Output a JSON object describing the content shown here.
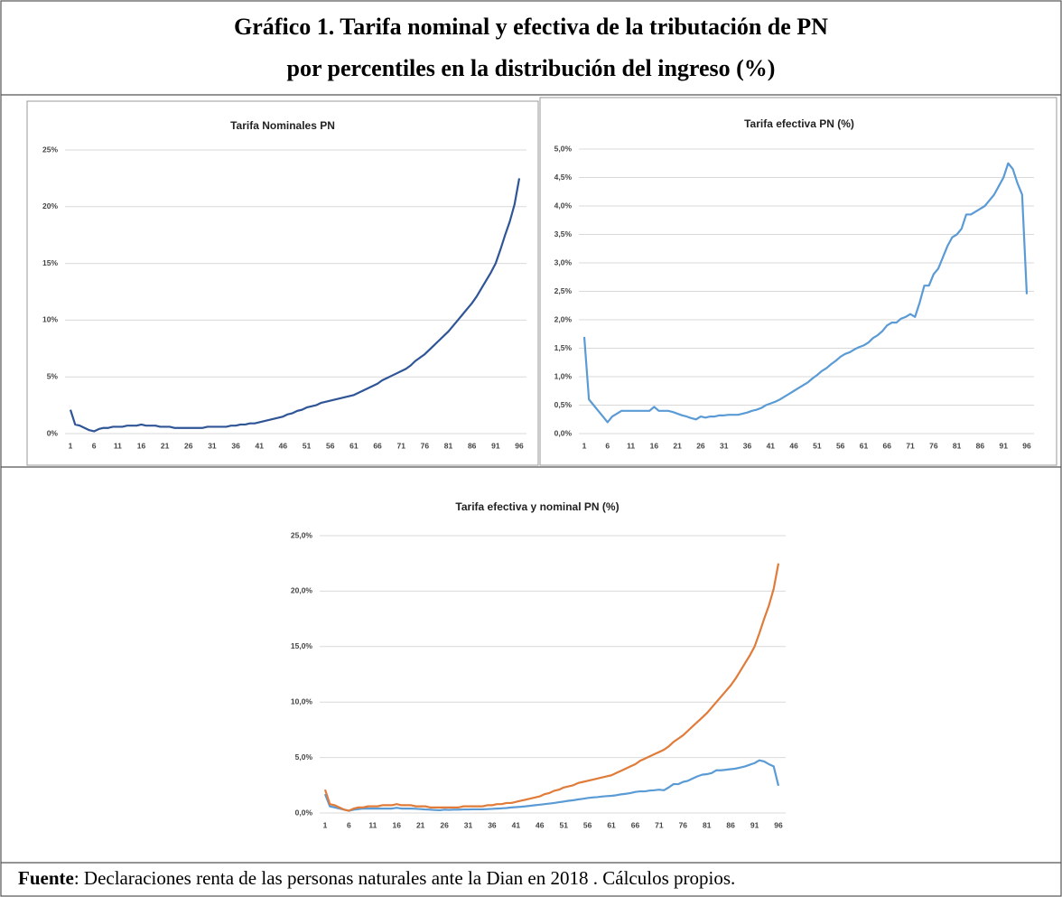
{
  "title": [
    "Gráfico 1. Tarifa nominal y efectiva de la tributación de PN",
    "por percentiles en la distribución del ingreso (%)"
  ],
  "source": {
    "label": "Fuente",
    "text": ": Declaraciones renta de las personas naturales ante la Dian en 2018 . Cálculos propios."
  },
  "chart_data": [
    {
      "type": "line",
      "title": "Tarifa Nominales PN",
      "categories": [
        1,
        null,
        null,
        null,
        null,
        6,
        null,
        null,
        null,
        null,
        11,
        null,
        null,
        null,
        null,
        16,
        null,
        null,
        null,
        null,
        21,
        null,
        null,
        null,
        null,
        26,
        null,
        null,
        null,
        null,
        31,
        null,
        null,
        null,
        null,
        36,
        null,
        null,
        null,
        null,
        41,
        null,
        null,
        null,
        null,
        46,
        null,
        null,
        null,
        null,
        51,
        null,
        null,
        null,
        null,
        56,
        null,
        null,
        null,
        null,
        61,
        null,
        null,
        null,
        null,
        66,
        null,
        null,
        null,
        null,
        71,
        null,
        null,
        null,
        null,
        76,
        null,
        null,
        null,
        null,
        81,
        null,
        null,
        null,
        null,
        86,
        null,
        null,
        null,
        null,
        91,
        null,
        null,
        null,
        null,
        96
      ],
      "series": [
        {
          "color": "#2f5597",
          "values": [
            2.1,
            0.8,
            0.7,
            0.5,
            0.3,
            0.2,
            0.4,
            0.5,
            0.5,
            0.6,
            0.6,
            0.6,
            0.7,
            0.7,
            0.7,
            0.8,
            0.7,
            0.7,
            0.7,
            0.6,
            0.6,
            0.6,
            0.5,
            0.5,
            0.5,
            0.5,
            0.5,
            0.5,
            0.5,
            0.6,
            0.6,
            0.6,
            0.6,
            0.6,
            0.7,
            0.7,
            0.8,
            0.8,
            0.9,
            0.9,
            1.0,
            1.1,
            1.2,
            1.3,
            1.4,
            1.5,
            1.7,
            1.8,
            2.0,
            2.1,
            2.3,
            2.4,
            2.5,
            2.7,
            2.8,
            2.9,
            3.0,
            3.1,
            3.2,
            3.3,
            3.4,
            3.6,
            3.8,
            4.0,
            4.2,
            4.4,
            4.7,
            4.9,
            5.1,
            5.3,
            5.5,
            5.7,
            6.0,
            6.4,
            6.7,
            7.0,
            7.4,
            7.8,
            8.2,
            8.6,
            9.0,
            9.5,
            10.0,
            10.5,
            11.0,
            11.5,
            12.1,
            12.8,
            13.5,
            14.2,
            15.0,
            16.2,
            17.5,
            18.7,
            20.2,
            22.5
          ]
        }
      ],
      "ylim": [
        0,
        25
      ],
      "yticks": [
        {
          "value": 0,
          "label": "0%"
        },
        {
          "value": 5,
          "label": "5%"
        },
        {
          "value": 10,
          "label": "10%"
        },
        {
          "value": 15,
          "label": "15%"
        },
        {
          "value": 20,
          "label": "20%"
        },
        {
          "value": 25,
          "label": "25%"
        }
      ],
      "grid": true
    },
    {
      "type": "line",
      "title": "Tarifa efectiva PN (%)",
      "categories": [
        1,
        null,
        null,
        null,
        null,
        6,
        null,
        null,
        null,
        null,
        11,
        null,
        null,
        null,
        null,
        16,
        null,
        null,
        null,
        null,
        21,
        null,
        null,
        null,
        null,
        26,
        null,
        null,
        null,
        null,
        31,
        null,
        null,
        null,
        null,
        36,
        null,
        null,
        null,
        null,
        41,
        null,
        null,
        null,
        null,
        46,
        null,
        null,
        null,
        null,
        51,
        null,
        null,
        null,
        null,
        56,
        null,
        null,
        null,
        null,
        61,
        null,
        null,
        null,
        null,
        66,
        null,
        null,
        null,
        null,
        71,
        null,
        null,
        null,
        null,
        76,
        null,
        null,
        null,
        null,
        81,
        null,
        null,
        null,
        null,
        86,
        null,
        null,
        null,
        null,
        91,
        null,
        null,
        null,
        null,
        96
      ],
      "series": [
        {
          "color": "#5b9bd5",
          "values": [
            1.7,
            0.6,
            0.5,
            0.4,
            0.3,
            0.2,
            0.3,
            0.35,
            0.4,
            0.4,
            0.4,
            0.4,
            0.4,
            0.4,
            0.4,
            0.47,
            0.4,
            0.4,
            0.4,
            0.38,
            0.35,
            0.32,
            0.3,
            0.27,
            0.25,
            0.3,
            0.28,
            0.3,
            0.3,
            0.32,
            0.32,
            0.33,
            0.33,
            0.33,
            0.35,
            0.37,
            0.4,
            0.42,
            0.45,
            0.5,
            0.53,
            0.56,
            0.6,
            0.65,
            0.7,
            0.75,
            0.8,
            0.85,
            0.9,
            0.97,
            1.03,
            1.1,
            1.15,
            1.22,
            1.28,
            1.35,
            1.4,
            1.43,
            1.48,
            1.52,
            1.55,
            1.6,
            1.68,
            1.73,
            1.8,
            1.9,
            1.95,
            1.95,
            2.02,
            2.05,
            2.1,
            2.05,
            2.3,
            2.6,
            2.6,
            2.8,
            2.9,
            3.1,
            3.3,
            3.45,
            3.5,
            3.6,
            3.85,
            3.85,
            3.9,
            3.95,
            4.0,
            4.1,
            4.2,
            4.35,
            4.5,
            4.75,
            4.65,
            4.4,
            4.2,
            2.45
          ]
        }
      ],
      "ylim": [
        0,
        5
      ],
      "yticks": [
        {
          "value": 0,
          "label": "0,0%"
        },
        {
          "value": 0.5,
          "label": "0,5%"
        },
        {
          "value": 1,
          "label": "1,0%"
        },
        {
          "value": 1.5,
          "label": "1,5%"
        },
        {
          "value": 2,
          "label": "2,0%"
        },
        {
          "value": 2.5,
          "label": "2,5%"
        },
        {
          "value": 3,
          "label": "3,0%"
        },
        {
          "value": 3.5,
          "label": "3,5%"
        },
        {
          "value": 4,
          "label": "4,0%"
        },
        {
          "value": 4.5,
          "label": "4,5%"
        },
        {
          "value": 5,
          "label": "5,0%"
        }
      ],
      "grid": true
    },
    {
      "type": "line",
      "title": "Tarifa efectiva y nominal PN (%)",
      "categories": [
        1,
        null,
        null,
        null,
        null,
        6,
        null,
        null,
        null,
        null,
        11,
        null,
        null,
        null,
        null,
        16,
        null,
        null,
        null,
        null,
        21,
        null,
        null,
        null,
        null,
        26,
        null,
        null,
        null,
        null,
        31,
        null,
        null,
        null,
        null,
        36,
        null,
        null,
        null,
        null,
        41,
        null,
        null,
        null,
        null,
        46,
        null,
        null,
        null,
        null,
        51,
        null,
        null,
        null,
        null,
        56,
        null,
        null,
        null,
        null,
        61,
        null,
        null,
        null,
        null,
        66,
        null,
        null,
        null,
        null,
        71,
        null,
        null,
        null,
        null,
        76,
        null,
        null,
        null,
        null,
        81,
        null,
        null,
        null,
        null,
        86,
        null,
        null,
        null,
        null,
        91,
        null,
        null,
        null,
        null,
        96
      ],
      "series": [
        {
          "color": "#5b9bd5",
          "values": [
            1.7,
            0.6,
            0.5,
            0.4,
            0.3,
            0.2,
            0.3,
            0.35,
            0.4,
            0.4,
            0.4,
            0.4,
            0.4,
            0.4,
            0.4,
            0.47,
            0.4,
            0.4,
            0.4,
            0.38,
            0.35,
            0.32,
            0.3,
            0.27,
            0.25,
            0.3,
            0.28,
            0.3,
            0.3,
            0.32,
            0.32,
            0.33,
            0.33,
            0.33,
            0.35,
            0.37,
            0.4,
            0.42,
            0.45,
            0.5,
            0.53,
            0.56,
            0.6,
            0.65,
            0.7,
            0.75,
            0.8,
            0.85,
            0.9,
            0.97,
            1.03,
            1.1,
            1.15,
            1.22,
            1.28,
            1.35,
            1.4,
            1.43,
            1.48,
            1.52,
            1.55,
            1.6,
            1.68,
            1.73,
            1.8,
            1.9,
            1.95,
            1.95,
            2.02,
            2.05,
            2.1,
            2.05,
            2.3,
            2.6,
            2.6,
            2.8,
            2.9,
            3.1,
            3.3,
            3.45,
            3.5,
            3.6,
            3.85,
            3.85,
            3.9,
            3.95,
            4.0,
            4.1,
            4.2,
            4.35,
            4.5,
            4.75,
            4.65,
            4.4,
            4.2,
            2.45
          ]
        },
        {
          "color": "#e07b39",
          "values": [
            2.1,
            0.8,
            0.7,
            0.5,
            0.3,
            0.2,
            0.4,
            0.5,
            0.5,
            0.6,
            0.6,
            0.6,
            0.7,
            0.7,
            0.7,
            0.8,
            0.7,
            0.7,
            0.7,
            0.6,
            0.6,
            0.6,
            0.5,
            0.5,
            0.5,
            0.5,
            0.5,
            0.5,
            0.5,
            0.6,
            0.6,
            0.6,
            0.6,
            0.6,
            0.7,
            0.7,
            0.8,
            0.8,
            0.9,
            0.9,
            1.0,
            1.1,
            1.2,
            1.3,
            1.4,
            1.5,
            1.7,
            1.8,
            2.0,
            2.1,
            2.3,
            2.4,
            2.5,
            2.7,
            2.8,
            2.9,
            3.0,
            3.1,
            3.2,
            3.3,
            3.4,
            3.6,
            3.8,
            4.0,
            4.2,
            4.4,
            4.7,
            4.9,
            5.1,
            5.3,
            5.5,
            5.7,
            6.0,
            6.4,
            6.7,
            7.0,
            7.4,
            7.8,
            8.2,
            8.6,
            9.0,
            9.5,
            10.0,
            10.5,
            11.0,
            11.5,
            12.1,
            12.8,
            13.5,
            14.2,
            15.0,
            16.2,
            17.5,
            18.7,
            20.2,
            22.5
          ]
        }
      ],
      "ylim": [
        0,
        25
      ],
      "yticks": [
        {
          "value": 0,
          "label": "0,0%"
        },
        {
          "value": 5,
          "label": "5,0%"
        },
        {
          "value": 10,
          "label": "10,0%"
        },
        {
          "value": 15,
          "label": "15,0%"
        },
        {
          "value": 20,
          "label": "20,0%"
        },
        {
          "value": 25,
          "label": "25,0%"
        }
      ],
      "grid": true
    }
  ]
}
